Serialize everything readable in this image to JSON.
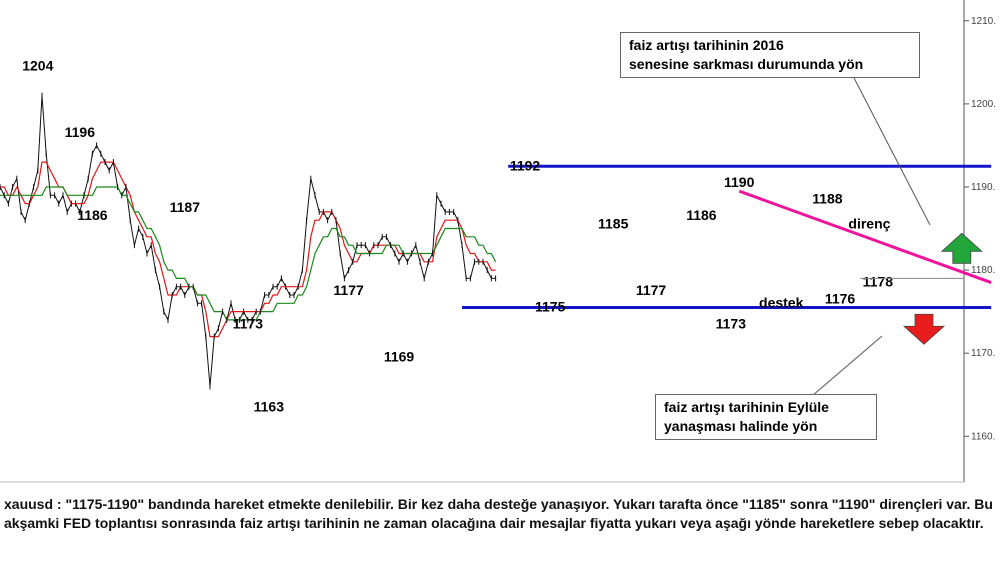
{
  "chart_data": {
    "type": "line",
    "symbol": "xauusd",
    "yaxis": {
      "ticks": [
        1210,
        1200,
        1190,
        1180,
        1170,
        1160
      ],
      "ylim": [
        1154.5,
        1212.5
      ],
      "position": "right"
    },
    "series": [
      {
        "name": "",
        "kind": "price",
        "values": [
          1190,
          1189,
          1188,
          1190,
          1191,
          1187,
          1186,
          1188,
          1190,
          1192,
          1201,
          1194,
          1189,
          1189,
          1188,
          1189,
          1187,
          1188,
          1188,
          1187,
          1189,
          1191,
          1194,
          1195,
          1194,
          1193,
          1192,
          1193,
          1190,
          1189,
          1190,
          1186,
          1183,
          1185,
          1184,
          1182,
          1183,
          1180,
          1178,
          1175,
          1174,
          1177,
          1178,
          1178,
          1177,
          1178,
          1178,
          1176,
          1176,
          1172,
          1166,
          1172,
          1173,
          1175,
          1174,
          1176,
          1174,
          1174,
          1175,
          1174,
          1174,
          1175,
          1175,
          1177,
          1177,
          1178,
          1178,
          1179,
          1178,
          1177,
          1177,
          1178,
          1180,
          1186,
          1191,
          1189,
          1187,
          1187,
          1186,
          1187,
          1186,
          1182,
          1179,
          1180,
          1181,
          1183,
          1183,
          1183,
          1182,
          1183,
          1183,
          1184,
          1184,
          1183,
          1182,
          1181,
          1182,
          1181,
          1182,
          1183,
          1181,
          1179,
          1181,
          1182,
          1189,
          1188,
          1187,
          1187,
          1187,
          1186,
          1183,
          1179,
          1179,
          1181,
          1181,
          1181,
          1180,
          1179,
          1179
        ]
      },
      {
        "name": "",
        "kind": "ma-fast",
        "color": "#e01818",
        "values": [
          1190,
          1190,
          1189,
          1189,
          1190,
          1189,
          1188,
          1188,
          1189,
          1190,
          1193,
          1193,
          1192,
          1191,
          1190,
          1190,
          1189,
          1188,
          1188,
          1188,
          1188,
          1189,
          1191,
          1192,
          1193,
          1193,
          1193,
          1193,
          1192,
          1191,
          1190,
          1189,
          1187,
          1186,
          1185,
          1184,
          1184,
          1182,
          1181,
          1179,
          1177,
          1177,
          1177,
          1178,
          1178,
          1178,
          1178,
          1177,
          1177,
          1175,
          1172,
          1172,
          1172,
          1173,
          1174,
          1175,
          1175,
          1175,
          1175,
          1175,
          1175,
          1175,
          1175,
          1176,
          1176,
          1177,
          1177,
          1178,
          1178,
          1178,
          1178,
          1178,
          1178,
          1180,
          1184,
          1186,
          1186,
          1187,
          1187,
          1187,
          1186,
          1185,
          1183,
          1182,
          1181,
          1181,
          1182,
          1182,
          1182,
          1183,
          1183,
          1183,
          1183,
          1183,
          1183,
          1182,
          1182,
          1182,
          1182,
          1182,
          1182,
          1181,
          1181,
          1181,
          1184,
          1185,
          1186,
          1186,
          1186,
          1186,
          1185,
          1183,
          1182,
          1182,
          1181,
          1181,
          1181,
          1180,
          1180
        ]
      },
      {
        "name": "",
        "kind": "ma-slow",
        "color": "#1a8a1a",
        "values": [
          1189,
          1189,
          1189,
          1189,
          1189,
          1189,
          1189,
          1189,
          1189,
          1189,
          1189,
          1190,
          1190,
          1190,
          1190,
          1190,
          1189,
          1189,
          1189,
          1189,
          1189,
          1189,
          1189,
          1190,
          1190,
          1190,
          1190,
          1190,
          1190,
          1189,
          1189,
          1188,
          1187,
          1187,
          1186,
          1185,
          1185,
          1184,
          1183,
          1181,
          1180,
          1180,
          1179,
          1179,
          1179,
          1178,
          1178,
          1177,
          1177,
          1177,
          1176,
          1175,
          1175,
          1175,
          1174,
          1174,
          1174,
          1174,
          1174,
          1174,
          1174,
          1174,
          1175,
          1175,
          1175,
          1175,
          1176,
          1176,
          1176,
          1176,
          1176,
          1177,
          1177,
          1178,
          1180,
          1182,
          1183,
          1184,
          1184,
          1185,
          1185,
          1184,
          1184,
          1183,
          1183,
          1182,
          1182,
          1182,
          1182,
          1182,
          1182,
          1182,
          1183,
          1183,
          1183,
          1183,
          1182,
          1182,
          1182,
          1182,
          1182,
          1182,
          1182,
          1182,
          1183,
          1184,
          1185,
          1185,
          1185,
          1185,
          1185,
          1184,
          1184,
          1184,
          1183,
          1183,
          1182,
          1182,
          1181
        ]
      }
    ],
    "annotations": [
      {
        "text": "1204",
        "x": 9,
        "y": 1204
      },
      {
        "text": "1196",
        "x": 19,
        "y": 1196
      },
      {
        "text": "1186",
        "x": 22,
        "y": 1186
      },
      {
        "text": "1187",
        "x": 44,
        "y": 1187
      },
      {
        "text": "1173",
        "x": 59,
        "y": 1173
      },
      {
        "text": "1163",
        "x": 64,
        "y": 1163
      },
      {
        "text": "1177",
        "x": 83,
        "y": 1177
      },
      {
        "text": "1169",
        "x": 95,
        "y": 1169
      },
      {
        "text": "1192",
        "x": 125,
        "y": 1192
      },
      {
        "text": "1175",
        "x": 131,
        "y": 1175
      },
      {
        "text": "1185",
        "x": 146,
        "y": 1185
      },
      {
        "text": "1177",
        "x": 155,
        "y": 1177
      },
      {
        "text": "1186",
        "x": 167,
        "y": 1186
      },
      {
        "text": "1173",
        "x": 174,
        "y": 1173
      },
      {
        "text": "1190",
        "x": 176,
        "y": 1190
      },
      {
        "text": "1188",
        "x": 197,
        "y": 1188
      },
      {
        "text": "destek",
        "x": 186,
        "y": 1175.5
      },
      {
        "text": "1176",
        "x": 200,
        "y": 1176
      },
      {
        "text": "1178",
        "x": 209,
        "y": 1178
      },
      {
        "text": "direnç",
        "x": 207,
        "y": 1185
      }
    ],
    "lines": [
      {
        "label": "resistance 1192",
        "color": "#1414c8",
        "from": [
          121,
          1192.5
        ],
        "to": [
          236,
          1192.5
        ]
      },
      {
        "label": "support 1175.5",
        "color": "#1414c8",
        "from": [
          110,
          1175.5
        ],
        "to": [
          236,
          1175.5
        ]
      },
      {
        "label": "direnç trend",
        "color": "#f0149c",
        "from": [
          176,
          1189.5
        ],
        "to": [
          236,
          1178.5
        ]
      }
    ],
    "arrows": [
      {
        "direction": "up",
        "color": "#22a63a",
        "x": 229,
        "y": 1182.5
      },
      {
        "direction": "down",
        "color": "#e81c1c",
        "x": 220,
        "y": 1173
      }
    ],
    "notes": [
      {
        "id": "up",
        "lines": [
          "faiz artışı tarihinin 2016",
          "senesine sarkması durumunda yön"
        ]
      },
      {
        "id": "down",
        "lines": [
          "faiz artışı tarihinin Eylüle",
          "yanaşması halinde yön"
        ]
      }
    ]
  },
  "caption": "xauusd : \"1175-1190\" bandında hareket etmekte denilebilir. Bir kez daha desteğe yanaşıyor. Yukarı tarafta önce \"1185\" sonra \"1190\" dirençleri var. Bu akşamki FED toplantısı sonrasında faiz artışı tarihinin ne zaman olacağına dair mesajlar fiyatta yukarı veya aşağı yönde hareketlere sebep olacaktır."
}
